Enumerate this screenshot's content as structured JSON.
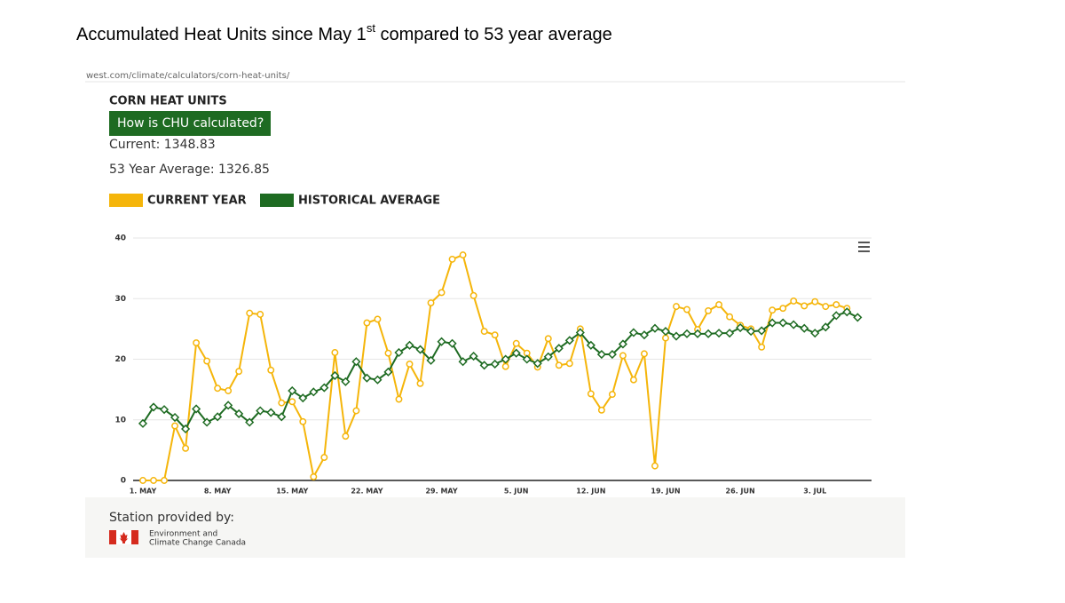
{
  "slide_title": {
    "before": "Accumulated Heat Units since May 1",
    "superscript": "st",
    "after": " compared to 53 year average"
  },
  "page": {
    "url": "west.com/climate/calculators/corn-heat-units/",
    "heading": "CORN HEAT UNITS",
    "button": "How is CHU calculated?",
    "current": "Current: 1348.83",
    "average": "53 Year Average: 1326.85",
    "station_label": "Station provided by:",
    "station_line1": "Environment and",
    "station_line2": "Climate Change Canada"
  },
  "chart_data": {
    "type": "line",
    "categories": [
      "1. MAY",
      null,
      null,
      null,
      null,
      null,
      null,
      "8. MAY",
      null,
      null,
      null,
      null,
      null,
      null,
      "15. MAY",
      null,
      null,
      null,
      null,
      null,
      null,
      "22. MAY",
      null,
      null,
      null,
      null,
      null,
      null,
      "29. MAY",
      null,
      null,
      null,
      null,
      null,
      null,
      "5. JUN",
      null,
      null,
      null,
      null,
      null,
      null,
      "12. JUN",
      null,
      null,
      null,
      null,
      null,
      null,
      "19. JUN",
      null,
      null,
      null,
      null,
      null,
      null,
      "26. JUN",
      null,
      null,
      null,
      null,
      null,
      null,
      "3. JUL",
      null,
      null,
      null,
      null
    ],
    "series": [
      {
        "name": "CURRENT YEAR",
        "color": "#f5b50a",
        "marker": "circle",
        "values": [
          0,
          0,
          0,
          9,
          5.3,
          22.7,
          19.7,
          15.2,
          14.8,
          18,
          27.6,
          27.4,
          18.2,
          12.8,
          13,
          9.7,
          0.6,
          3.8,
          21.1,
          7.3,
          11.5,
          26,
          26.6,
          21,
          13.4,
          19.2,
          16,
          29.3,
          31,
          36.5,
          37.2,
          30.5,
          24.6,
          24,
          18.8,
          22.6,
          21,
          18.7,
          23.4,
          19,
          19.3,
          25,
          14.3,
          11.6,
          14.2,
          20.6,
          16.6,
          20.9,
          2.4,
          23.5,
          28.7,
          28.2,
          24.9,
          28,
          29,
          27,
          25.6,
          25,
          22,
          28.1,
          28.4,
          29.6,
          28.8,
          29.5,
          28.7,
          29,
          28.4,
          null
        ]
      },
      {
        "name": "HISTORICAL AVERAGE",
        "color": "#1e6b22",
        "marker": "diamond",
        "values": [
          9.4,
          12.1,
          11.7,
          10.4,
          8.5,
          11.8,
          9.6,
          10.5,
          12.4,
          11,
          9.6,
          11.5,
          11.2,
          10.5,
          14.8,
          13.6,
          14.6,
          15.3,
          17.3,
          16.3,
          19.6,
          16.9,
          16.6,
          17.9,
          21.1,
          22.3,
          21.6,
          19.8,
          22.9,
          22.6,
          19.6,
          20.5,
          19,
          19.2,
          20,
          21,
          20,
          19.3,
          20.4,
          21.8,
          23.1,
          24.4,
          22.3,
          20.8,
          20.8,
          22.5,
          24.4,
          24,
          25.1,
          24.6,
          23.8,
          24.2,
          24.2,
          24.2,
          24.3,
          24.3,
          25.2,
          24.6,
          24.7,
          26,
          26,
          25.7,
          25.1,
          24.3,
          25.3,
          27.2,
          27.8,
          26.9
        ]
      }
    ],
    "ylim": [
      0,
      40
    ],
    "yticks": [
      0,
      10,
      20,
      30,
      40
    ],
    "grid": true
  }
}
